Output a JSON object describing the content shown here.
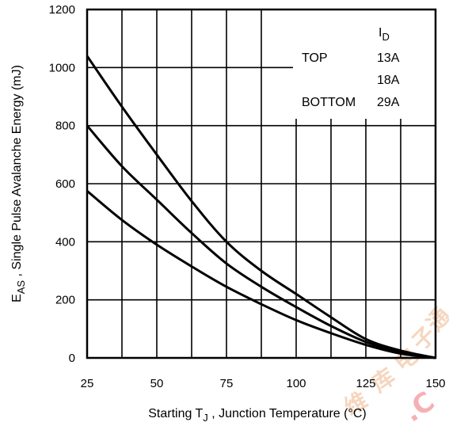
{
  "chart_data": {
    "type": "line",
    "x_axis": {
      "label_main": "Starting T",
      "label_sub": "J",
      "label_tail": " , Junction Temperature (°C)",
      "range": [
        25,
        150
      ],
      "ticks": [
        25,
        50,
        75,
        100,
        125,
        150
      ],
      "tick_labels": [
        "25",
        "50",
        "75",
        "100",
        "125",
        "150"
      ],
      "minor_step": 12.5
    },
    "y_axis": {
      "label_main": "E",
      "label_sub": "AS",
      "label_tail": " , Single Pulse Avalanche Energy (mJ)",
      "range": [
        0,
        1200
      ],
      "ticks": [
        0,
        200,
        400,
        600,
        800,
        1000,
        1200
      ],
      "tick_labels": [
        "0",
        "200",
        "400",
        "600",
        "800",
        "1000",
        "1200"
      ]
    },
    "grid": true,
    "legend": {
      "header_main": "I",
      "header_sub": "D",
      "rows": [
        {
          "position": "TOP",
          "current": "13A"
        },
        {
          "position": "",
          "current": "18A"
        },
        {
          "position": "BOTTOM",
          "current": "29A"
        }
      ],
      "placement": "top-right"
    },
    "series": [
      {
        "name": "13A",
        "x": [
          25,
          37.5,
          50,
          62.5,
          75,
          87.5,
          100,
          112.5,
          125,
          137.5,
          150
        ],
        "y": [
          1040,
          865,
          700,
          540,
          400,
          300,
          220,
          140,
          65,
          25,
          0
        ]
      },
      {
        "name": "18A",
        "x": [
          25,
          37.5,
          50,
          62.5,
          75,
          87.5,
          100,
          112.5,
          125,
          137.5,
          150
        ],
        "y": [
          800,
          660,
          545,
          430,
          325,
          245,
          175,
          110,
          55,
          20,
          0
        ]
      },
      {
        "name": "29A",
        "x": [
          25,
          37.5,
          50,
          62.5,
          75,
          87.5,
          100,
          112.5,
          125,
          137.5,
          150
        ],
        "y": [
          575,
          475,
          390,
          315,
          245,
          185,
          130,
          85,
          45,
          15,
          0
        ]
      }
    ]
  },
  "watermark": {
    "glyphs": [
      "维",
      "库",
      "电",
      "子",
      "通"
    ],
    "tail": ".C"
  }
}
